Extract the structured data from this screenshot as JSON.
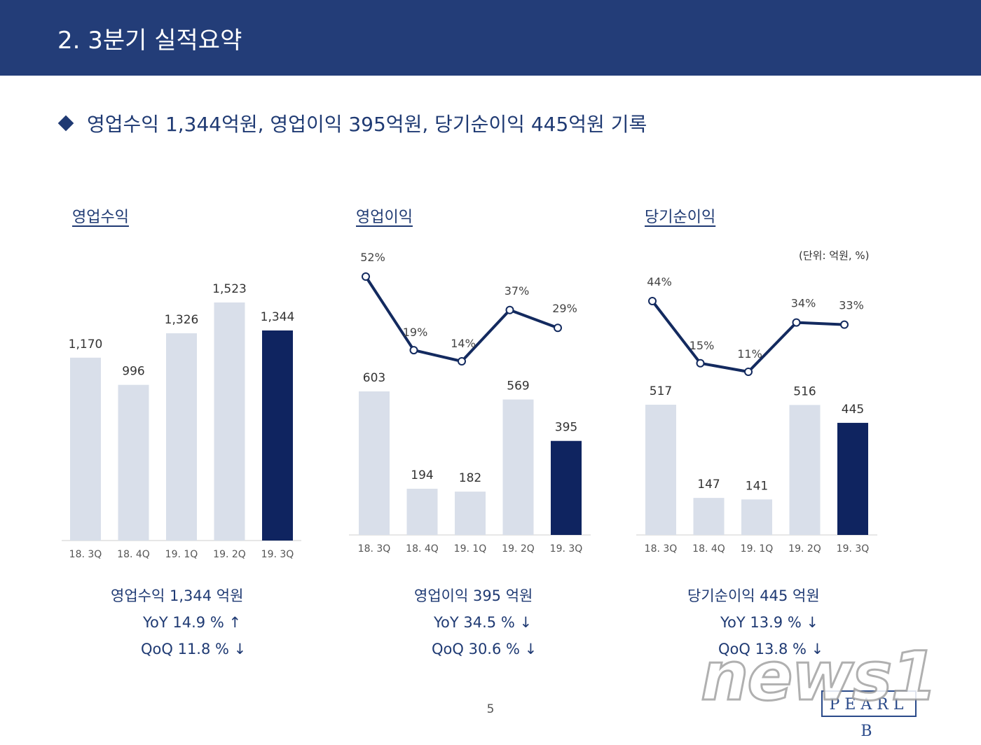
{
  "header": {
    "title": "2. 3분기 실적요약"
  },
  "headline": "영업수익 1,344억원, 영업이익 395억원, 당기순이익 445억원 기록",
  "unit_note": "(단위: 억원, %)",
  "colors": {
    "bar_light": "#d9dfea",
    "bar_highlight": "#0f2460",
    "line": "#132a5f",
    "header_bg": "#233d78"
  },
  "chart_data": [
    {
      "type": "bar",
      "title": "영업수익",
      "categories": [
        "18. 3Q",
        "18. 4Q",
        "19. 1Q",
        "19. 2Q",
        "19. 3Q"
      ],
      "values": [
        1170,
        996,
        1326,
        1523,
        1344
      ],
      "value_labels": [
        "1,170",
        "996",
        "1,326",
        "1,523",
        "1,344"
      ],
      "ylim": [
        0,
        1523
      ],
      "highlight_index": 4
    },
    {
      "type": "bar",
      "title": "영업이익",
      "categories": [
        "18. 3Q",
        "18. 4Q",
        "19. 1Q",
        "19. 2Q",
        "19. 3Q"
      ],
      "values": [
        603,
        194,
        182,
        569,
        395
      ],
      "value_labels": [
        "603",
        "194",
        "182",
        "569",
        "395"
      ],
      "margin_series": {
        "values": [
          52,
          19,
          14,
          37,
          29
        ],
        "labels": [
          "52%",
          "19%",
          "14%",
          "37%",
          "29%"
        ]
      },
      "highlight_index": 4
    },
    {
      "type": "bar",
      "title": "당기순이익",
      "categories": [
        "18. 3Q",
        "18. 4Q",
        "19. 1Q",
        "19. 2Q",
        "19. 3Q"
      ],
      "values": [
        517,
        147,
        141,
        516,
        445
      ],
      "value_labels": [
        "517",
        "147",
        "141",
        "516",
        "445"
      ],
      "margin_series": {
        "values": [
          44,
          15,
          11,
          34,
          33
        ],
        "labels": [
          "44%",
          "15%",
          "11%",
          "34%",
          "33%"
        ]
      },
      "highlight_index": 4
    }
  ],
  "summaries": [
    {
      "title": "영업수익 1,344 억원",
      "yoy": "YoY 14.9 % ↑",
      "qoq": "QoQ 11.8 % ↓"
    },
    {
      "title": "영업이익 395 억원",
      "yoy": "YoY 34.5 % ↓",
      "qoq": "QoQ 30.6 % ↓"
    },
    {
      "title": "당기순이익 445 억원",
      "yoy": "YoY 13.9 % ↓",
      "qoq": "QoQ 13.8 % ↓"
    }
  ],
  "page_number": "5",
  "logo_text": "PEARL B",
  "watermark_text": "news1"
}
